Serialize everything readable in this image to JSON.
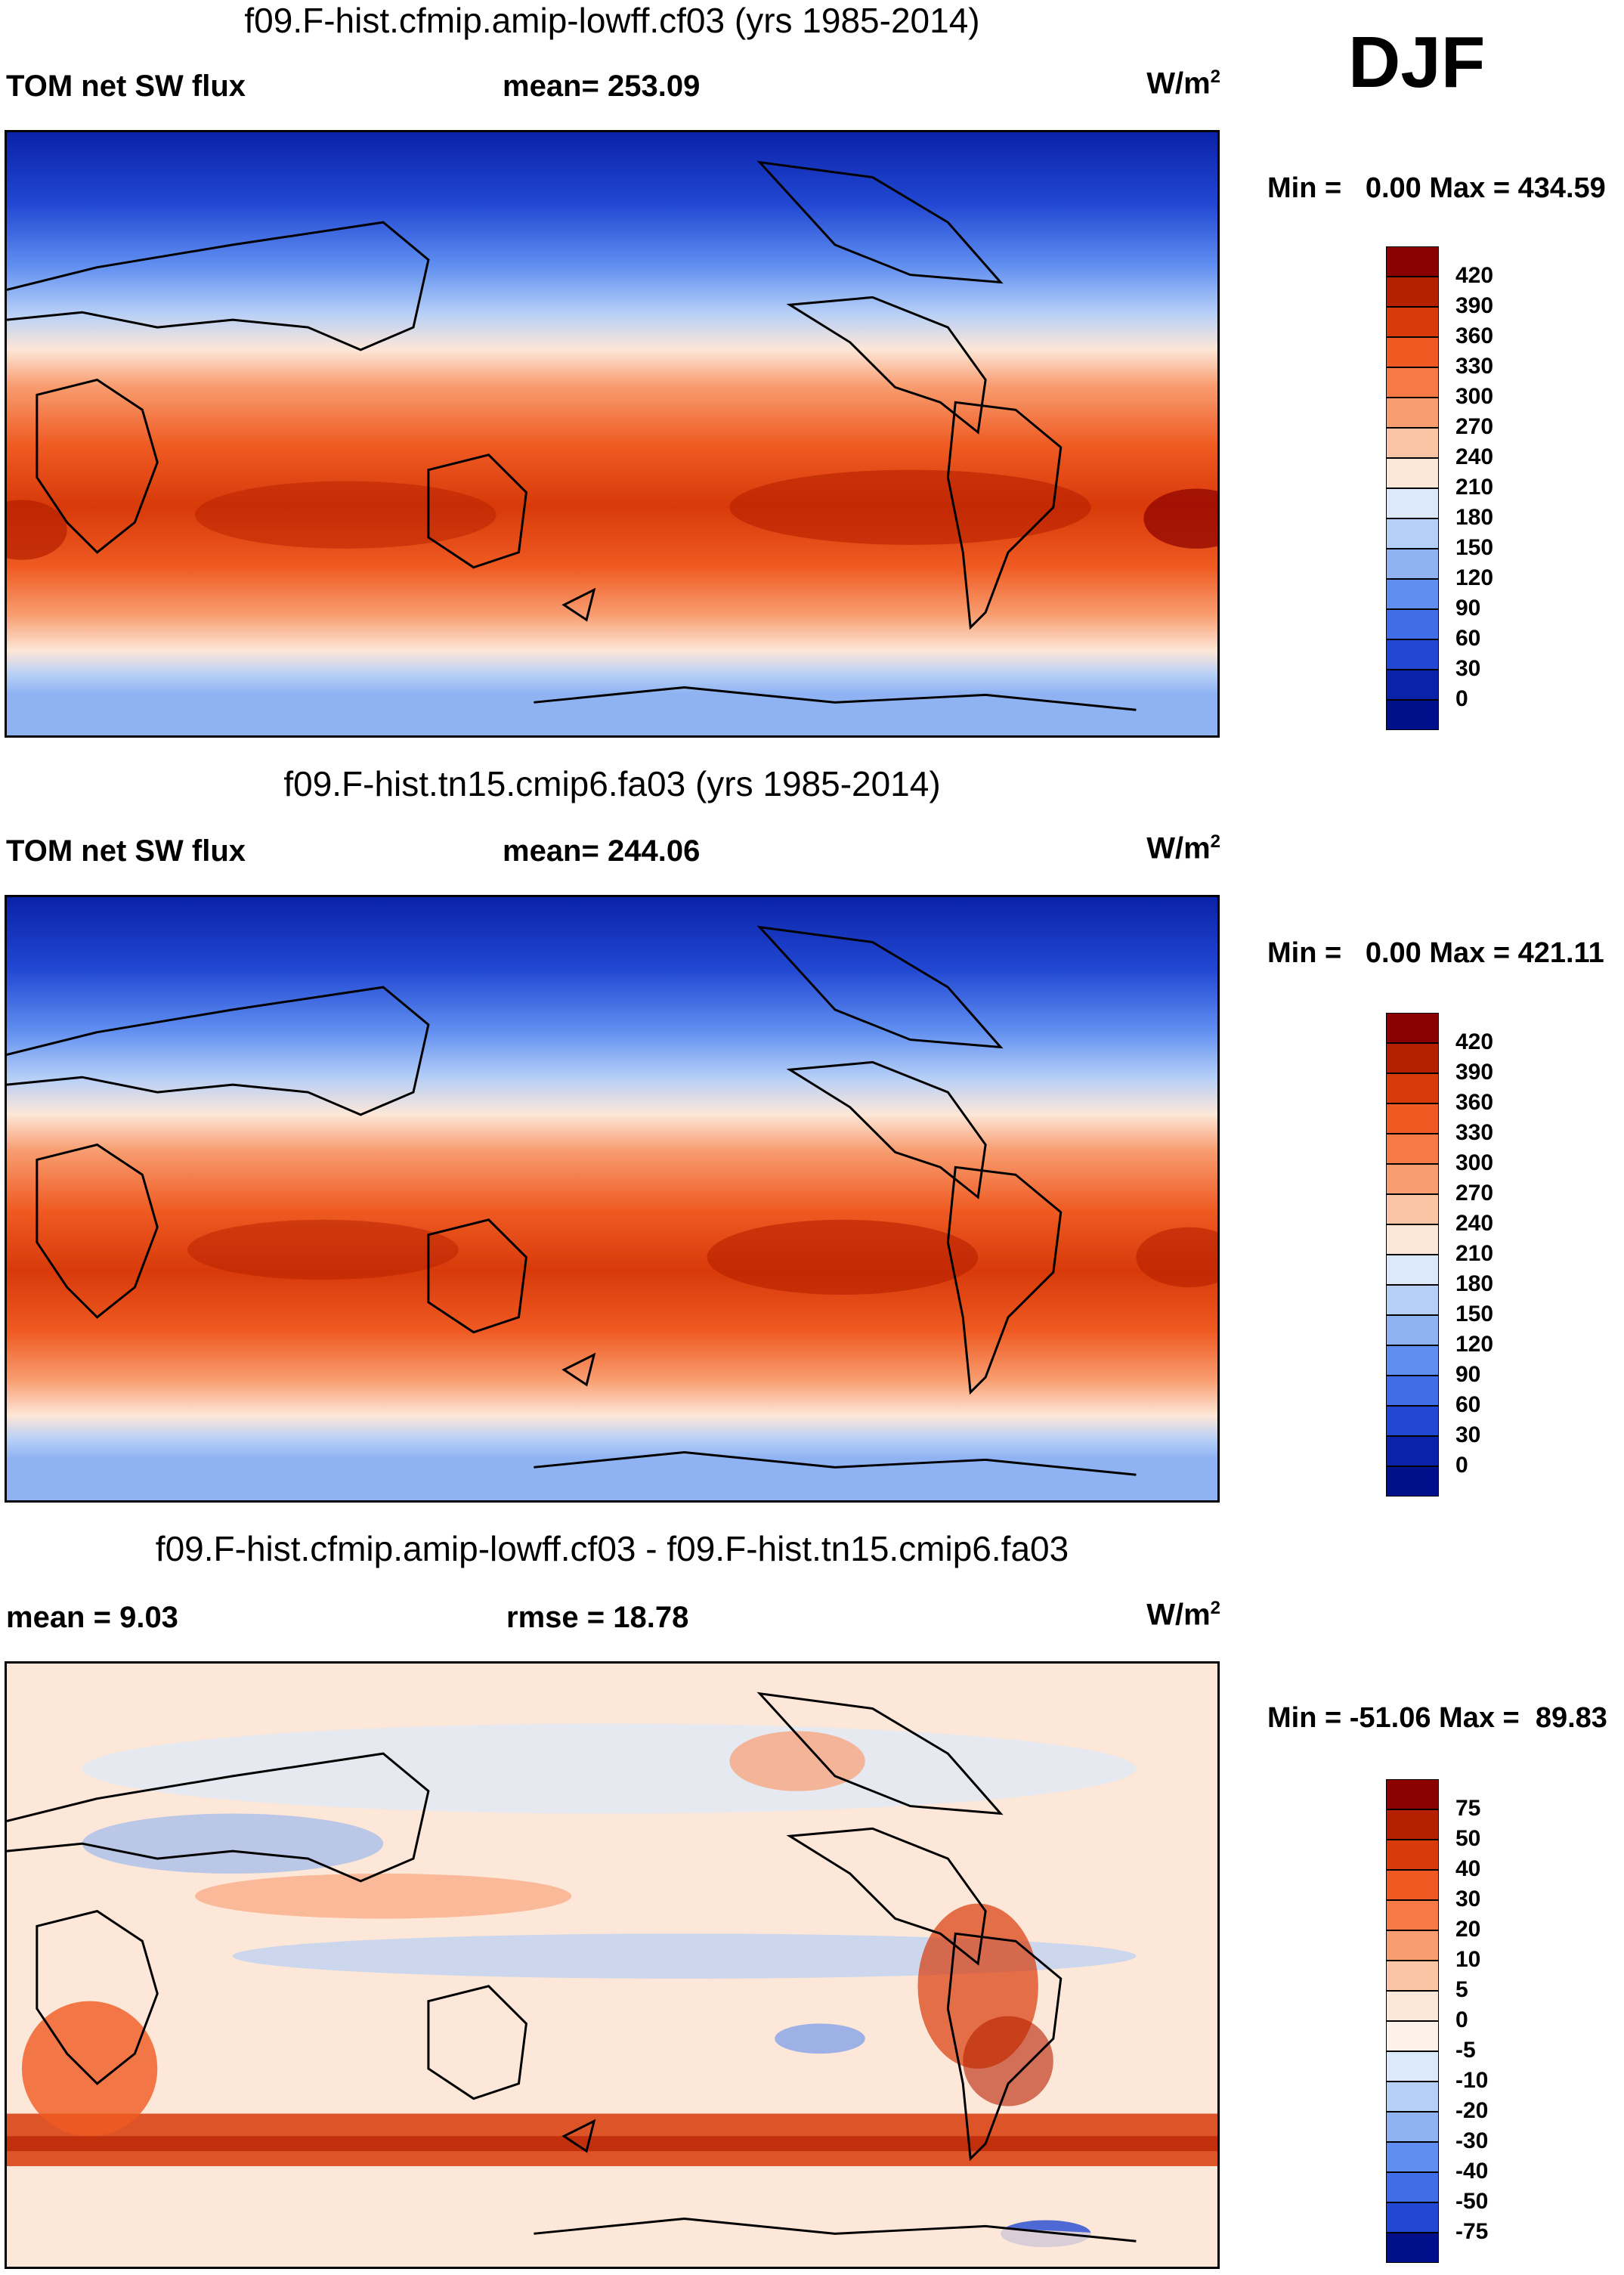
{
  "season": "DJF",
  "panels": [
    {
      "title": "f09.F-hist.cfmip.amip-lowff.cf03 (yrs 1985-2014)",
      "left_label": "TOM net SW flux",
      "center_label": "mean= 253.09",
      "units_base": "W/m",
      "units_exp": "2",
      "minmax": "Min =   0.00 Max = 434.59",
      "levels": [
        "420",
        "390",
        "360",
        "330",
        "300",
        "270",
        "240",
        "210",
        "180",
        "150",
        "120",
        "90",
        "60",
        "30",
        "0"
      ],
      "colors": [
        "#8b0000",
        "#b52000",
        "#d83a0a",
        "#ef5a22",
        "#f57a45",
        "#f89d70",
        "#fbc4a4",
        "#fde7d8",
        "#dce9fb",
        "#b6cff7",
        "#8fb3f2",
        "#5f8ef0",
        "#3f6ee8",
        "#2248d3",
        "#0a22a8",
        "#00108a"
      ]
    },
    {
      "title": "f09.F-hist.tn15.cmip6.fa03 (yrs 1985-2014)",
      "left_label": "TOM net SW flux",
      "center_label": "mean= 244.06",
      "units_base": "W/m",
      "units_exp": "2",
      "minmax": "Min =   0.00 Max = 421.11",
      "levels": [
        "420",
        "390",
        "360",
        "330",
        "300",
        "270",
        "240",
        "210",
        "180",
        "150",
        "120",
        "90",
        "60",
        "30",
        "0"
      ],
      "colors": [
        "#8b0000",
        "#b52000",
        "#d83a0a",
        "#ef5a22",
        "#f57a45",
        "#f89d70",
        "#fbc4a4",
        "#fde7d8",
        "#dce9fb",
        "#b6cff7",
        "#8fb3f2",
        "#5f8ef0",
        "#3f6ee8",
        "#2248d3",
        "#0a22a8",
        "#00108a"
      ]
    },
    {
      "title": "f09.F-hist.cfmip.amip-lowff.cf03 - f09.F-hist.tn15.cmip6.fa03",
      "left_label": "mean =   9.03",
      "center_label": "rmse =  18.78",
      "units_base": "W/m",
      "units_exp": "2",
      "minmax": "Min = -51.06 Max =  89.83",
      "levels": [
        "75",
        "50",
        "40",
        "30",
        "20",
        "10",
        "5",
        "0",
        "-5",
        "-10",
        "-20",
        "-30",
        "-40",
        "-50",
        "-75"
      ],
      "colors": [
        "#8b0000",
        "#b52000",
        "#d83a0a",
        "#ef5a22",
        "#f57a45",
        "#f89d70",
        "#fbc4a4",
        "#fde7d8",
        "#fdf2ea",
        "#dce9fb",
        "#b6cff7",
        "#8fb3f2",
        "#5f8ef0",
        "#3f6ee8",
        "#2248d3",
        "#00108a"
      ]
    }
  ]
}
